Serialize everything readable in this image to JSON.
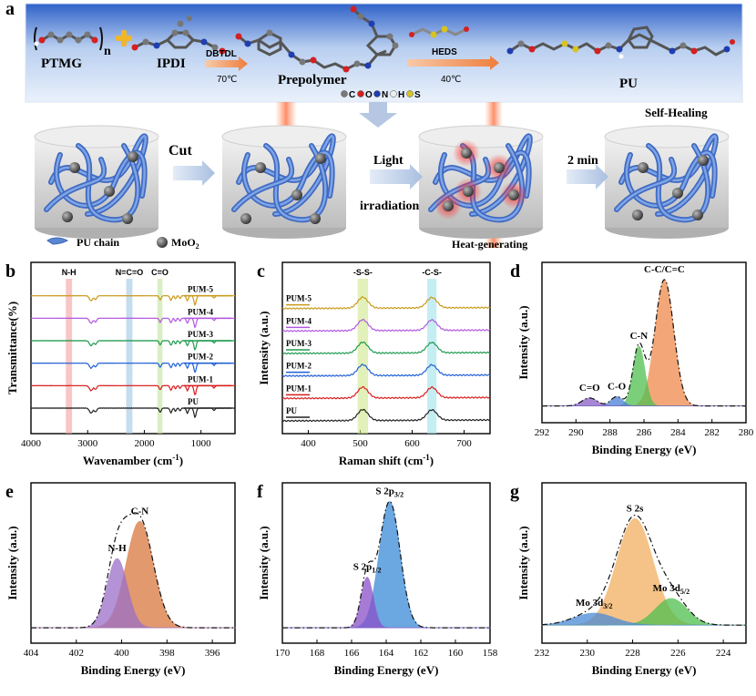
{
  "panel_a": {
    "label": "a",
    "reagents": {
      "ptmg": "PTMG",
      "n": "n",
      "ipdi": "IPDI",
      "catalyst": "DBTDL",
      "temp1": "70℃",
      "prepolymer": "Prepolymer",
      "heds": "HEDS",
      "temp2": "40℃",
      "pu": "PU"
    },
    "atom_legend": [
      {
        "label": "C",
        "color": "#7a7a7a"
      },
      {
        "label": "O",
        "color": "#d42020"
      },
      {
        "label": "N",
        "color": "#1f3fb0"
      },
      {
        "label": "H",
        "color": "#eeeeee"
      },
      {
        "label": "S",
        "color": "#d7c41e"
      }
    ],
    "process": {
      "cut": "Cut",
      "light": "Light",
      "irradiation": "irradiation",
      "two_min": "2 min",
      "self_healing": "Self-Healing",
      "heat_generating": "Heat-generating"
    },
    "legend": {
      "pu_chain": "PU chain",
      "moo2_prefix": "MoO",
      "moo2_sub": "2"
    }
  },
  "chart_data": [
    {
      "panel": "b",
      "type": "line",
      "title": "",
      "xlabel": "Wavenamber (cm",
      "xlabel_sup": "-1",
      "xlabel_end": ")",
      "ylabel": "Transmittance(%)",
      "xlim": [
        4000,
        400
      ],
      "xticks": [
        4000,
        3000,
        2000,
        1000
      ],
      "bands": [
        {
          "label": "N-H",
          "center": 3330,
          "width": 110,
          "color": "#f4a0a0"
        },
        {
          "label": "N=C=O",
          "center": 2265,
          "width": 110,
          "color": "#9fc7e3"
        },
        {
          "label": "C=O",
          "center": 1725,
          "width": 90,
          "color": "#bfe59b"
        }
      ],
      "peaks": [
        {
          "x": 2940,
          "depth": 0.55,
          "w": 40
        },
        {
          "x": 2860,
          "depth": 0.4,
          "w": 30
        },
        {
          "x": 1720,
          "depth": 0.45,
          "w": 25
        },
        {
          "x": 1530,
          "depth": 0.5,
          "w": 25
        },
        {
          "x": 1450,
          "depth": 0.35,
          "w": 20
        },
        {
          "x": 1370,
          "depth": 0.3,
          "w": 20
        },
        {
          "x": 1240,
          "depth": 0.55,
          "w": 25
        },
        {
          "x": 1105,
          "depth": 1.0,
          "w": 28
        },
        {
          "x": 770,
          "depth": 0.25,
          "w": 25
        }
      ],
      "series": [
        {
          "name": "PU",
          "color": "#222222",
          "offset": 0
        },
        {
          "name": "PUM-1",
          "color": "#d81e1e",
          "offset": 1
        },
        {
          "name": "PUM-2",
          "color": "#1f5fd6",
          "offset": 2
        },
        {
          "name": "PUM-3",
          "color": "#1f9a4e",
          "offset": 3
        },
        {
          "name": "PUM-4",
          "color": "#b257e0",
          "offset": 4
        },
        {
          "name": "PUM-5",
          "color": "#c99a1a",
          "offset": 5
        }
      ]
    },
    {
      "panel": "c",
      "type": "line",
      "title": "",
      "xlabel": "Raman shift (cm",
      "xlabel_sup": "-1",
      "xlabel_end": ")",
      "ylabel": "Intensity (a.u.)",
      "xlim": [
        350,
        750
      ],
      "xticks": [
        400,
        500,
        600,
        700
      ],
      "bands": [
        {
          "label": "-S-S-",
          "center": 505,
          "width": 20,
          "color": "#cde88a"
        },
        {
          "label": "-C-S-",
          "center": 638,
          "width": 18,
          "color": "#9fe3ea"
        }
      ],
      "peaks": [
        {
          "x": 505,
          "h": 1.0,
          "w": 14
        },
        {
          "x": 638,
          "h": 0.95,
          "w": 14
        }
      ],
      "series": [
        {
          "name": "PU",
          "color": "#222222",
          "offset": 0
        },
        {
          "name": "PUM-1",
          "color": "#d81e1e",
          "offset": 1
        },
        {
          "name": "PUM-2",
          "color": "#1f5fd6",
          "offset": 2
        },
        {
          "name": "PUM-3",
          "color": "#1f9a4e",
          "offset": 3
        },
        {
          "name": "PUM-4",
          "color": "#b257e0",
          "offset": 4
        },
        {
          "name": "PUM-5",
          "color": "#c99a1a",
          "offset": 5
        }
      ]
    },
    {
      "panel": "d",
      "type": "area",
      "xlabel": "Binding Energy (eV)",
      "ylabel": "Intensity (a.u.)",
      "xlim": [
        292,
        280
      ],
      "xticks": [
        292,
        290,
        288,
        286,
        284,
        282,
        280
      ],
      "baseline": 0.03,
      "peaks": [
        {
          "name": "C-C/C=C",
          "center": 284.8,
          "height": 0.95,
          "sigma": 0.55,
          "color": "#f08a4b"
        },
        {
          "name": "C-N",
          "center": 286.3,
          "height": 0.45,
          "sigma": 0.35,
          "color": "#4fc04f"
        },
        {
          "name": "C-O",
          "center": 287.6,
          "height": 0.07,
          "sigma": 0.35,
          "color": "#4a7fd6"
        },
        {
          "name": "C=O",
          "center": 289.2,
          "height": 0.06,
          "sigma": 0.45,
          "color": "#8a5fc8"
        }
      ]
    },
    {
      "panel": "e",
      "type": "area",
      "xlabel": "Binding Energy (eV)",
      "ylabel": "Intensity (a.u.)",
      "xlim": [
        404,
        395
      ],
      "xticks": [
        404,
        402,
        400,
        398,
        396
      ],
      "baseline": 0.02,
      "peaks": [
        {
          "name": "C-N",
          "center": 399.2,
          "height": 0.8,
          "sigma": 0.6,
          "color": "#d9773e"
        },
        {
          "name": "N-H",
          "center": 400.2,
          "height": 0.52,
          "sigma": 0.45,
          "color": "#9a6fc8"
        }
      ]
    },
    {
      "panel": "f",
      "type": "area",
      "xlabel": "Binding Energy (eV)",
      "ylabel": "Intensity (a.u.)",
      "xlim": [
        170,
        158
      ],
      "xticks": [
        170,
        168,
        166,
        164,
        162,
        160,
        158
      ],
      "baseline": 0.02,
      "peaks": [
        {
          "name": "S 2p",
          "sub": "3/2",
          "center": 163.8,
          "height": 0.95,
          "sigma": 0.6,
          "color": "#3a8ad6"
        },
        {
          "name": "S 2p",
          "sub": "1/2",
          "center": 165.1,
          "height": 0.38,
          "sigma": 0.35,
          "color": "#8a4fc8"
        }
      ]
    },
    {
      "panel": "g",
      "type": "area",
      "xlabel": "Binding Energy (eV)",
      "ylabel": "Intensity (a.u.)",
      "xlim": [
        232,
        223
      ],
      "xticks": [
        232,
        230,
        228,
        226,
        224
      ],
      "baseline": 0.04,
      "peaks": [
        {
          "name": "S 2s",
          "center": 227.9,
          "height": 0.8,
          "sigma": 0.8,
          "color": "#f2b060"
        },
        {
          "name": "Mo 3d",
          "sub": "5/2",
          "center": 226.3,
          "height": 0.2,
          "sigma": 0.7,
          "color": "#4fc04f"
        },
        {
          "name": "Mo 3d",
          "sub": "3/2",
          "center": 229.7,
          "height": 0.09,
          "sigma": 0.9,
          "color": "#4a8ad6"
        }
      ]
    }
  ]
}
